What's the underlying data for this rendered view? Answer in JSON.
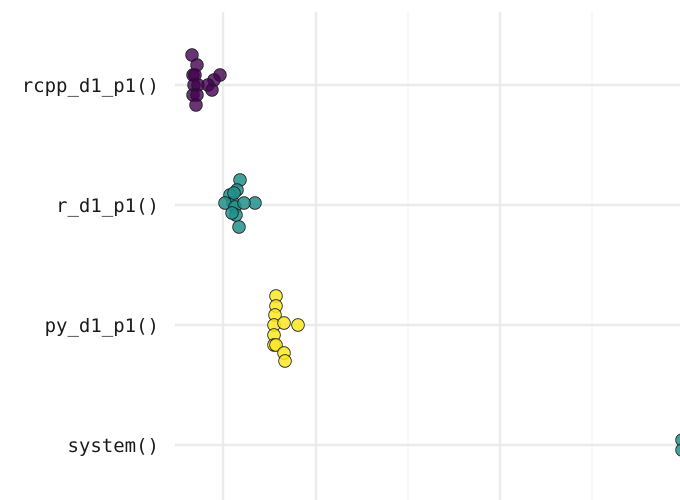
{
  "chart_data": {
    "type": "scatter",
    "subtype": "beeswarm",
    "title": "",
    "xlabel": "",
    "ylabel": "",
    "grid": true,
    "legend": "none",
    "categories": [
      "rcpp_d1_p1()",
      "r_d1_p1()",
      "py_d1_p1()",
      "system()"
    ],
    "series": [
      {
        "category": "rcpp_d1_p1()",
        "color": "#440154",
        "x": [
          192,
          197,
          193,
          195,
          194,
          198,
          193,
          197,
          196,
          220,
          214,
          208,
          212
        ]
      },
      {
        "category": "r_d1_p1()",
        "color": "#21908C",
        "x": [
          240,
          237,
          230,
          233,
          225,
          235,
          236,
          239,
          255,
          244,
          234,
          232
        ]
      },
      {
        "category": "py_d1_p1()",
        "color": "#FDE725",
        "x": [
          276,
          276,
          275,
          274,
          274,
          274,
          276,
          284,
          285,
          298,
          284
        ]
      },
      {
        "category": "system()",
        "color": "#21908C",
        "x": [
          682,
          682
        ]
      }
    ]
  }
}
